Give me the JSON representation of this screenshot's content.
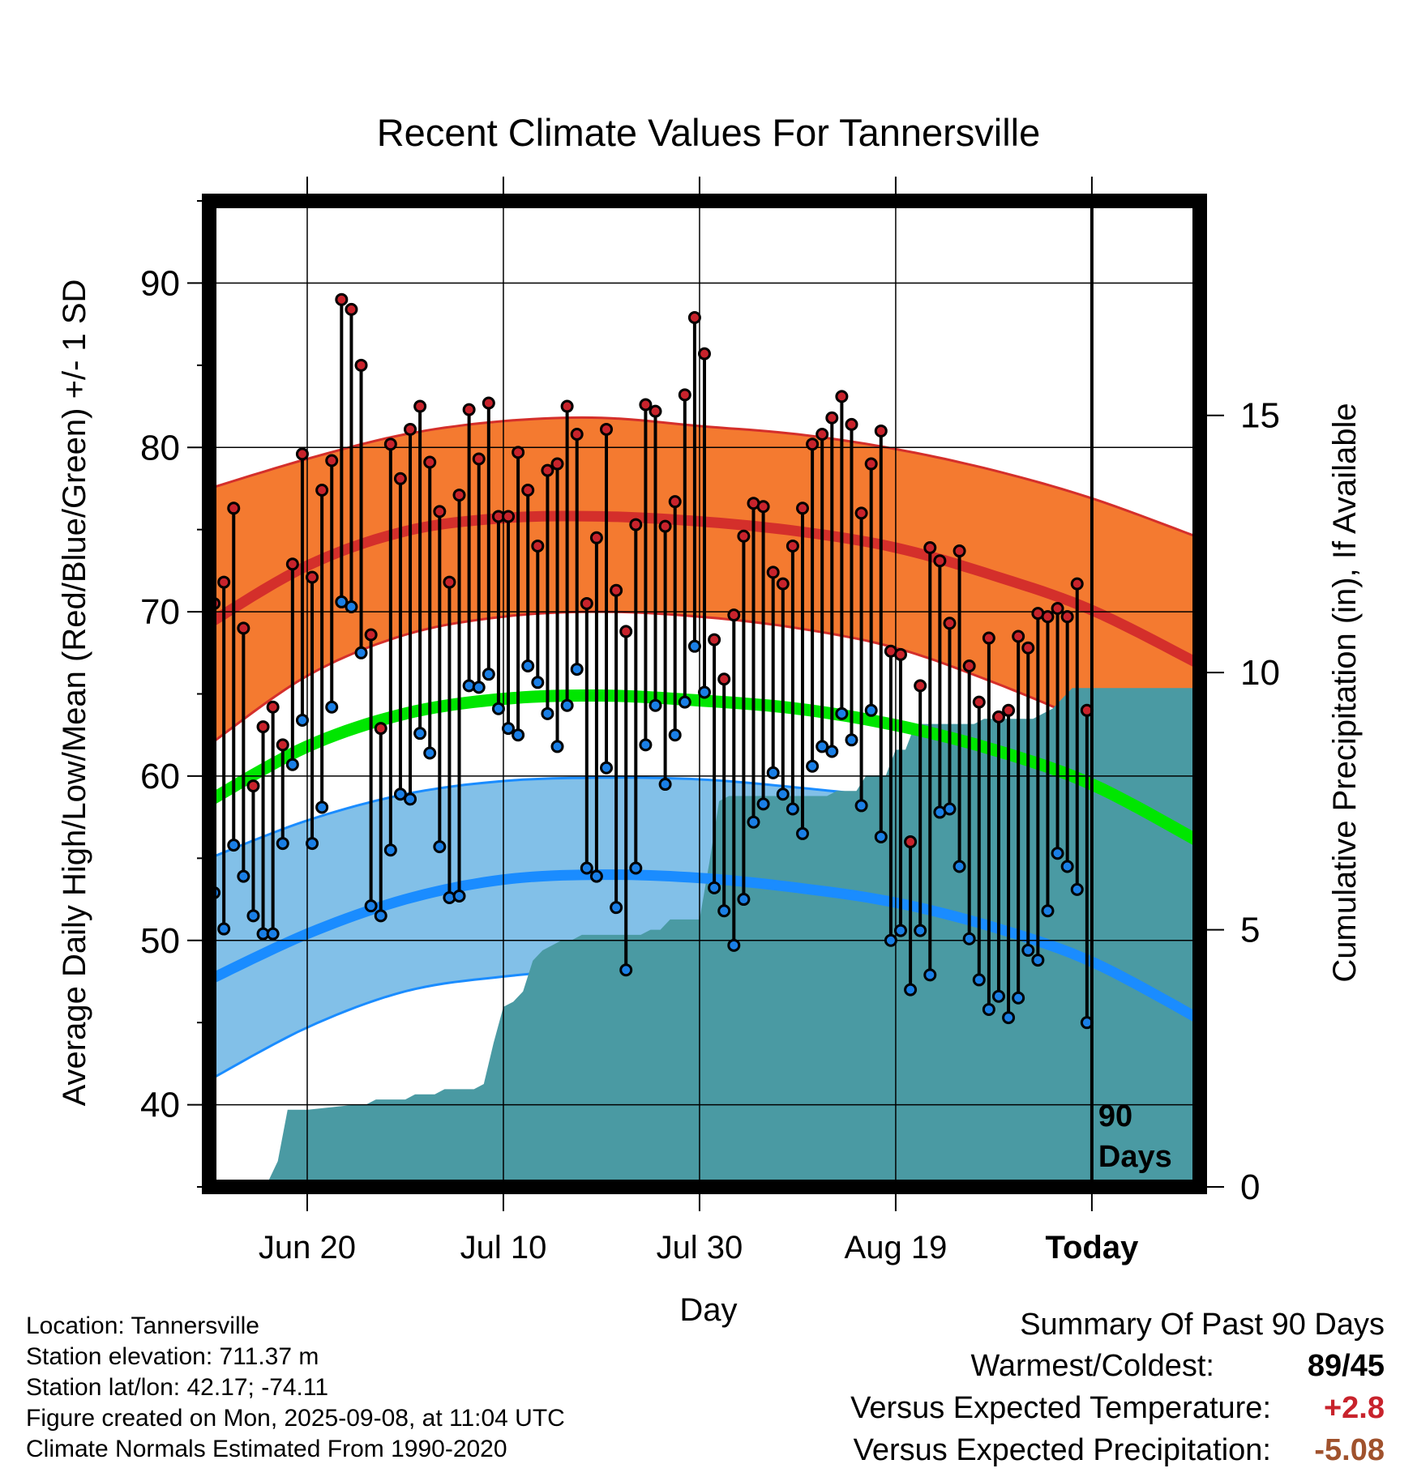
{
  "chart_data": {
    "type": "line",
    "title": "Recent Climate Values For Tannersville",
    "xlabel": "Day",
    "ylabel": "Average Daily High/Low/Mean (Red/Blue/Green) +/- 1 SD",
    "y2label": "Cumulative Precipitation (in), If Available",
    "ylim": [
      35,
      95
    ],
    "y2lim": [
      0,
      19.17
    ],
    "yticks": [
      "40",
      "50",
      "60",
      "70",
      "80",
      "90"
    ],
    "y2ticks": [
      "0",
      "5",
      "10",
      "15"
    ],
    "xlim": [
      0,
      101
    ],
    "xticks": [
      {
        "x": 10,
        "label": "Jun 20"
      },
      {
        "x": 30,
        "label": "Jul 10"
      },
      {
        "x": 50,
        "label": "Jul 30"
      },
      {
        "x": 70,
        "label": "Aug 19"
      },
      {
        "x": 90,
        "label": "Today"
      }
    ],
    "today_x": 90,
    "today_label": [
      "90",
      "Days"
    ],
    "grid": true,
    "normals_x": [
      0,
      10,
      20,
      30,
      40,
      50,
      60,
      70,
      80,
      90,
      101
    ],
    "normal_high": [
      69.3,
      72.8,
      74.9,
      75.7,
      75.8,
      75.5,
      74.9,
      73.9,
      72.2,
      70.1,
      66.8
    ],
    "normal_high_sd_upper": [
      77.5,
      79.3,
      80.8,
      81.6,
      81.8,
      81.3,
      80.8,
      79.9,
      78.6,
      76.9,
      74.5
    ],
    "normal_high_sd_lower": [
      61.9,
      66.1,
      68.6,
      69.7,
      70.0,
      69.7,
      69.0,
      67.8,
      65.7,
      63.2,
      60.2
    ],
    "normal_mean": [
      58.5,
      61.8,
      63.8,
      64.7,
      64.9,
      64.6,
      64.1,
      63.1,
      61.6,
      59.5,
      56.0
    ],
    "normal_low": [
      47.6,
      50.4,
      52.5,
      53.7,
      54.0,
      53.8,
      53.2,
      52.3,
      50.8,
      48.7,
      45.2
    ],
    "normal_low_sd_upper": [
      55.0,
      57.3,
      58.9,
      59.7,
      59.9,
      59.8,
      59.3,
      58.6,
      57.3,
      55.6,
      52.9
    ],
    "normal_low_sd_lower": [
      41.5,
      44.7,
      46.9,
      47.8,
      48.2,
      48.0,
      47.6,
      46.9,
      45.5,
      43.4,
      40.2
    ],
    "highs": [
      70.5,
      71.8,
      76.3,
      69.0,
      59.4,
      63.0,
      64.2,
      61.9,
      72.9,
      79.6,
      72.1,
      77.4,
      79.2,
      89.0,
      88.4,
      85.0,
      68.6,
      62.9,
      80.2,
      78.1,
      81.1,
      82.5,
      79.1,
      76.1,
      71.8,
      77.1,
      82.3,
      79.3,
      82.7,
      75.8,
      75.8,
      79.7,
      77.4,
      74.0,
      78.6,
      79.0,
      82.5,
      80.8,
      70.5,
      74.5,
      81.1,
      71.3,
      68.8,
      75.3,
      82.6,
      82.2,
      75.2,
      76.7,
      83.2,
      87.9,
      85.7,
      68.3,
      65.9,
      69.8,
      74.6,
      76.6,
      76.4,
      72.4,
      71.7,
      74.0,
      76.3,
      80.2,
      80.8,
      81.8,
      83.1,
      81.4,
      76.0,
      79.0,
      81.0,
      67.6,
      67.4,
      56.0,
      65.5,
      73.9,
      73.1,
      69.3,
      73.7,
      66.7,
      64.5,
      68.4,
      63.6,
      64.0,
      68.5,
      67.8,
      69.9,
      69.7,
      70.2,
      69.7,
      71.7,
      64.0
    ],
    "lows": [
      52.9,
      50.7,
      55.8,
      53.9,
      51.5,
      50.4,
      50.4,
      55.9,
      60.7,
      63.4,
      55.9,
      58.1,
      64.2,
      70.6,
      70.3,
      67.5,
      52.1,
      51.5,
      55.5,
      58.9,
      58.6,
      62.6,
      61.4,
      55.7,
      52.6,
      52.7,
      65.5,
      65.4,
      66.2,
      64.1,
      62.9,
      62.5,
      66.7,
      65.7,
      63.8,
      61.8,
      64.3,
      66.5,
      54.4,
      53.9,
      60.5,
      52.0,
      48.2,
      54.4,
      61.9,
      64.3,
      59.5,
      62.5,
      64.5,
      67.9,
      65.1,
      53.2,
      51.8,
      49.7,
      52.5,
      57.2,
      58.3,
      60.2,
      58.9,
      58.0,
      56.5,
      60.6,
      61.8,
      61.5,
      63.8,
      62.2,
      58.2,
      64.0,
      56.3,
      50.0,
      50.6,
      47.0,
      50.6,
      47.9,
      57.8,
      58.0,
      54.5,
      50.1,
      47.6,
      45.8,
      46.6,
      45.3,
      46.5,
      49.4,
      48.8,
      51.8,
      55.3,
      54.5,
      53.1,
      45.0
    ],
    "precip_x": [
      0,
      5,
      6,
      7,
      8,
      9,
      10,
      15,
      16,
      17,
      18,
      19,
      20,
      21,
      22,
      23,
      24,
      25,
      26,
      27,
      28,
      29,
      30,
      31,
      32,
      33,
      34,
      35,
      36,
      37,
      38,
      39,
      40,
      41,
      42,
      43,
      44,
      45,
      46,
      47,
      48,
      49,
      50,
      51,
      52,
      53,
      54,
      55,
      56,
      57,
      58,
      59,
      60,
      61,
      62,
      63,
      64,
      65,
      66,
      67,
      68,
      69,
      70,
      71,
      72,
      73,
      74,
      75,
      76,
      77,
      78,
      79,
      80,
      81,
      82,
      83,
      84,
      85,
      86,
      87,
      88,
      89,
      90,
      101
    ],
    "precip": [
      0.0,
      0.0,
      0.1,
      0.5,
      1.5,
      1.5,
      1.5,
      1.6,
      1.6,
      1.7,
      1.7,
      1.7,
      1.7,
      1.8,
      1.8,
      1.8,
      1.9,
      1.9,
      1.9,
      1.9,
      2.0,
      2.8,
      3.5,
      3.6,
      3.8,
      4.4,
      4.6,
      4.7,
      4.8,
      4.8,
      4.9,
      4.9,
      4.9,
      4.9,
      4.9,
      4.9,
      4.9,
      5.0,
      5.0,
      5.2,
      5.2,
      5.2,
      5.2,
      6.3,
      7.5,
      7.6,
      7.6,
      7.6,
      7.6,
      7.6,
      7.6,
      7.6,
      7.6,
      7.6,
      7.6,
      7.6,
      7.7,
      7.7,
      7.7,
      8.0,
      8.0,
      8.0,
      8.5,
      8.5,
      9.0,
      9.0,
      9.0,
      9.0,
      9.0,
      9.0,
      9.0,
      9.1,
      9.1,
      9.1,
      9.1,
      9.1,
      9.1,
      9.2,
      9.3,
      9.5,
      9.7,
      9.7,
      9.7,
      9.7
    ],
    "series": [
      {
        "name": "High",
        "color": "#c8232c"
      },
      {
        "name": "Low",
        "color": "#1a8cff"
      },
      {
        "name": "Mean",
        "color": "#00e600"
      }
    ],
    "colors": {
      "high_sd_fill": "#f47a30",
      "high_line": "#d42f2b",
      "low_sd_fill": "#82c0e8",
      "low_line": "#1a8cff",
      "mean_line": "#00e600",
      "precip_fill": "#4a9aa3",
      "high_dot": "#c8232c",
      "low_dot": "#1a7fe6"
    }
  },
  "info": {
    "location": "Location: Tannersville",
    "elevation": "Station elevation: 711.37 m",
    "latlon": "Station lat/lon: 42.17; -74.11",
    "created": "Figure created on Mon, 2025-09-08, at 11:04 UTC",
    "normals": "Climate Normals Estimated From 1990-2020"
  },
  "summary": {
    "title": "Summary Of Past 90 Days",
    "warmest_coldest_label": "Warmest/Coldest:",
    "warmest_coldest_value": "89/45",
    "temp_label": "Versus Expected Temperature:",
    "temp_value": "+2.8",
    "temp_color": "#c8232c",
    "precip_label": "Versus Expected Precipitation:",
    "precip_value": "-5.08",
    "precip_color": "#a0522d"
  }
}
